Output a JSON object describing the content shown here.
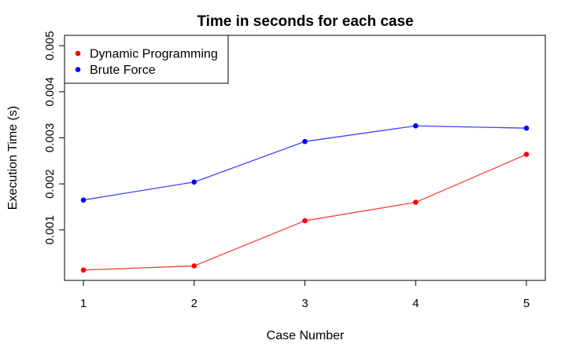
{
  "chart_data": {
    "type": "line",
    "title": "Time in seconds for each case",
    "xlabel": "Case Number",
    "ylabel": "Execution Time (s)",
    "x": [
      1,
      2,
      3,
      4,
      5
    ],
    "x_ticks": [
      "1",
      "2",
      "3",
      "4",
      "5"
    ],
    "y_ticks": [
      "0.001",
      "0.002",
      "0.003",
      "0.004",
      "0.005"
    ],
    "y_tick_values": [
      0.001,
      0.002,
      0.003,
      0.004,
      0.005
    ],
    "xlim": [
      1,
      5
    ],
    "ylim": [
      0.00011,
      0.00502
    ],
    "grid": false,
    "legend_position": "top-left",
    "series": [
      {
        "name": "Dynamic Programming",
        "color": "#ff0000",
        "values": [
          0.00013,
          0.00022,
          0.0012,
          0.0016,
          0.00264
        ]
      },
      {
        "name": "Brute Force",
        "color": "#0000ff",
        "values": [
          0.00165,
          0.00204,
          0.00292,
          0.00326,
          0.00321
        ]
      }
    ]
  }
}
